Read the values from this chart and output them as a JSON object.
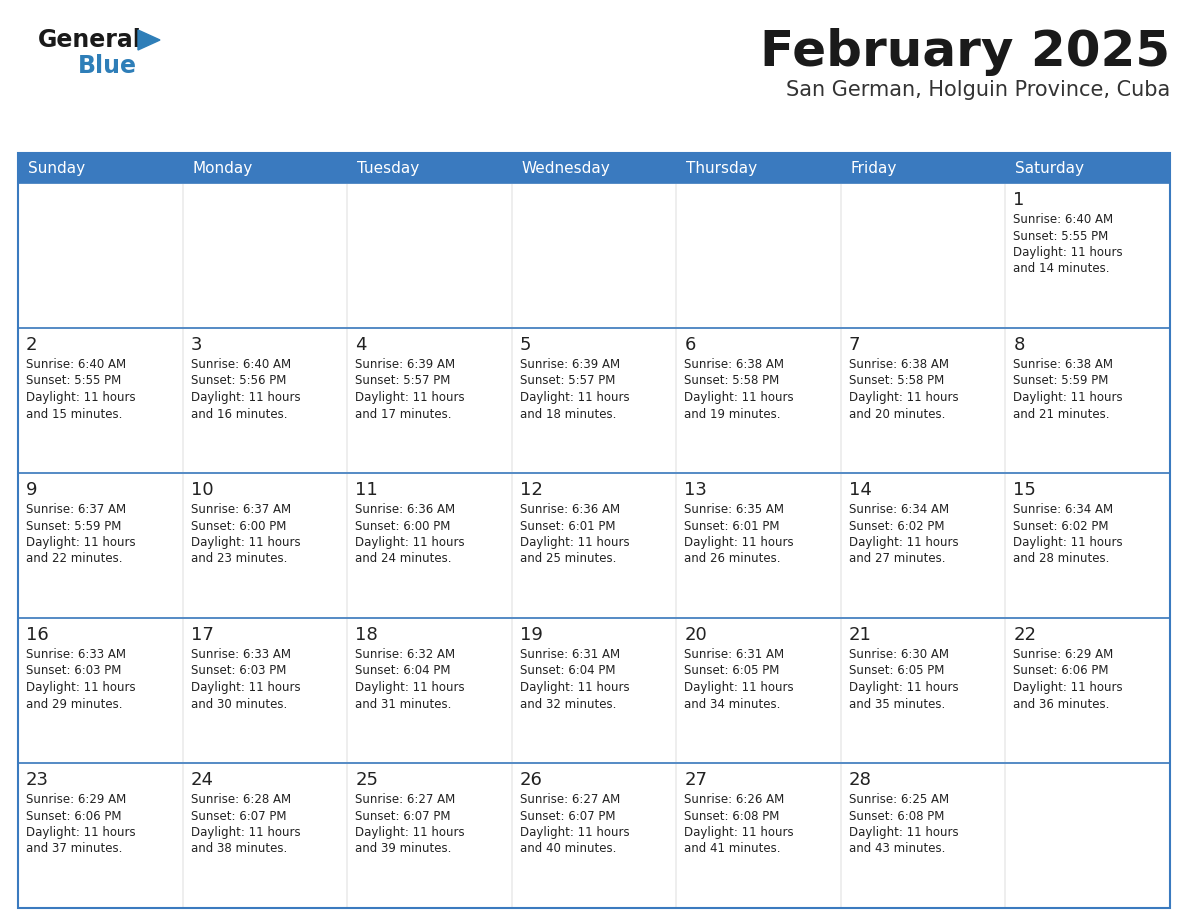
{
  "title": "February 2025",
  "subtitle": "San German, Holguin Province, Cuba",
  "header_bg": "#3a7abf",
  "header_text_color": "#FFFFFF",
  "cell_bg": "#eeeeee",
  "row1_bg": "#eeeeee",
  "border_color": "#3a7abf",
  "day_headers": [
    "Sunday",
    "Monday",
    "Tuesday",
    "Wednesday",
    "Thursday",
    "Friday",
    "Saturday"
  ],
  "title_color": "#1a1a1a",
  "subtitle_color": "#333333",
  "day_num_color": "#222222",
  "cell_text_color": "#222222",
  "logo_general_color": "#1a1a1a",
  "logo_blue_color": "#2E7EB8",
  "weeks": [
    [
      {
        "day": null,
        "info": null
      },
      {
        "day": null,
        "info": null
      },
      {
        "day": null,
        "info": null
      },
      {
        "day": null,
        "info": null
      },
      {
        "day": null,
        "info": null
      },
      {
        "day": null,
        "info": null
      },
      {
        "day": 1,
        "info": "Sunrise: 6:40 AM\nSunset: 5:55 PM\nDaylight: 11 hours\nand 14 minutes."
      }
    ],
    [
      {
        "day": 2,
        "info": "Sunrise: 6:40 AM\nSunset: 5:55 PM\nDaylight: 11 hours\nand 15 minutes."
      },
      {
        "day": 3,
        "info": "Sunrise: 6:40 AM\nSunset: 5:56 PM\nDaylight: 11 hours\nand 16 minutes."
      },
      {
        "day": 4,
        "info": "Sunrise: 6:39 AM\nSunset: 5:57 PM\nDaylight: 11 hours\nand 17 minutes."
      },
      {
        "day": 5,
        "info": "Sunrise: 6:39 AM\nSunset: 5:57 PM\nDaylight: 11 hours\nand 18 minutes."
      },
      {
        "day": 6,
        "info": "Sunrise: 6:38 AM\nSunset: 5:58 PM\nDaylight: 11 hours\nand 19 minutes."
      },
      {
        "day": 7,
        "info": "Sunrise: 6:38 AM\nSunset: 5:58 PM\nDaylight: 11 hours\nand 20 minutes."
      },
      {
        "day": 8,
        "info": "Sunrise: 6:38 AM\nSunset: 5:59 PM\nDaylight: 11 hours\nand 21 minutes."
      }
    ],
    [
      {
        "day": 9,
        "info": "Sunrise: 6:37 AM\nSunset: 5:59 PM\nDaylight: 11 hours\nand 22 minutes."
      },
      {
        "day": 10,
        "info": "Sunrise: 6:37 AM\nSunset: 6:00 PM\nDaylight: 11 hours\nand 23 minutes."
      },
      {
        "day": 11,
        "info": "Sunrise: 6:36 AM\nSunset: 6:00 PM\nDaylight: 11 hours\nand 24 minutes."
      },
      {
        "day": 12,
        "info": "Sunrise: 6:36 AM\nSunset: 6:01 PM\nDaylight: 11 hours\nand 25 minutes."
      },
      {
        "day": 13,
        "info": "Sunrise: 6:35 AM\nSunset: 6:01 PM\nDaylight: 11 hours\nand 26 minutes."
      },
      {
        "day": 14,
        "info": "Sunrise: 6:34 AM\nSunset: 6:02 PM\nDaylight: 11 hours\nand 27 minutes."
      },
      {
        "day": 15,
        "info": "Sunrise: 6:34 AM\nSunset: 6:02 PM\nDaylight: 11 hours\nand 28 minutes."
      }
    ],
    [
      {
        "day": 16,
        "info": "Sunrise: 6:33 AM\nSunset: 6:03 PM\nDaylight: 11 hours\nand 29 minutes."
      },
      {
        "day": 17,
        "info": "Sunrise: 6:33 AM\nSunset: 6:03 PM\nDaylight: 11 hours\nand 30 minutes."
      },
      {
        "day": 18,
        "info": "Sunrise: 6:32 AM\nSunset: 6:04 PM\nDaylight: 11 hours\nand 31 minutes."
      },
      {
        "day": 19,
        "info": "Sunrise: 6:31 AM\nSunset: 6:04 PM\nDaylight: 11 hours\nand 32 minutes."
      },
      {
        "day": 20,
        "info": "Sunrise: 6:31 AM\nSunset: 6:05 PM\nDaylight: 11 hours\nand 34 minutes."
      },
      {
        "day": 21,
        "info": "Sunrise: 6:30 AM\nSunset: 6:05 PM\nDaylight: 11 hours\nand 35 minutes."
      },
      {
        "day": 22,
        "info": "Sunrise: 6:29 AM\nSunset: 6:06 PM\nDaylight: 11 hours\nand 36 minutes."
      }
    ],
    [
      {
        "day": 23,
        "info": "Sunrise: 6:29 AM\nSunset: 6:06 PM\nDaylight: 11 hours\nand 37 minutes."
      },
      {
        "day": 24,
        "info": "Sunrise: 6:28 AM\nSunset: 6:07 PM\nDaylight: 11 hours\nand 38 minutes."
      },
      {
        "day": 25,
        "info": "Sunrise: 6:27 AM\nSunset: 6:07 PM\nDaylight: 11 hours\nand 39 minutes."
      },
      {
        "day": 26,
        "info": "Sunrise: 6:27 AM\nSunset: 6:07 PM\nDaylight: 11 hours\nand 40 minutes."
      },
      {
        "day": 27,
        "info": "Sunrise: 6:26 AM\nSunset: 6:08 PM\nDaylight: 11 hours\nand 41 minutes."
      },
      {
        "day": 28,
        "info": "Sunrise: 6:25 AM\nSunset: 6:08 PM\nDaylight: 11 hours\nand 43 minutes."
      },
      {
        "day": null,
        "info": null
      }
    ]
  ]
}
